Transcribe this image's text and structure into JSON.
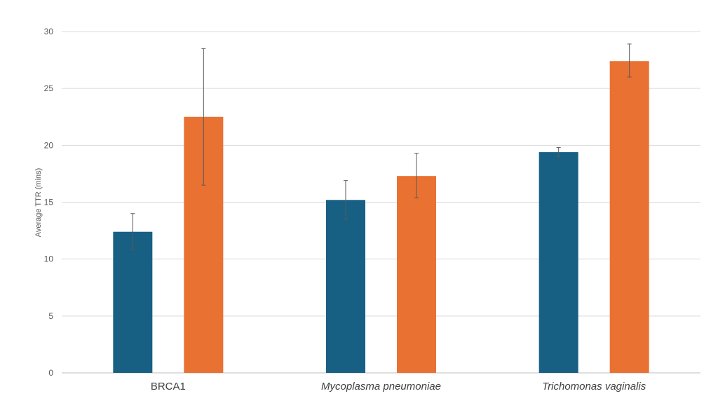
{
  "chart_data": {
    "type": "bar",
    "title": "",
    "xlabel": "",
    "ylabel": "Average TTR (mins)",
    "ylim": [
      0,
      30
    ],
    "yticks": [
      0,
      5,
      10,
      15,
      20,
      25,
      30
    ],
    "grid": true,
    "legend": "none",
    "categories": [
      "BRCA1",
      "Mycoplasma  pneumoniae",
      "Trichomonas vaginalis"
    ],
    "categories_italic": [
      false,
      true,
      true
    ],
    "series": [
      {
        "color": "#176084",
        "values": [
          12.4,
          15.2,
          19.4
        ],
        "error_low": [
          10.8,
          13.5,
          19.0
        ],
        "error_high": [
          14.0,
          16.9,
          19.8
        ]
      },
      {
        "color": "#E97132",
        "values": [
          22.5,
          17.3,
          27.4
        ],
        "error_low": [
          16.5,
          15.4,
          26.0
        ],
        "error_high": [
          28.5,
          19.3,
          28.9
        ]
      }
    ]
  }
}
